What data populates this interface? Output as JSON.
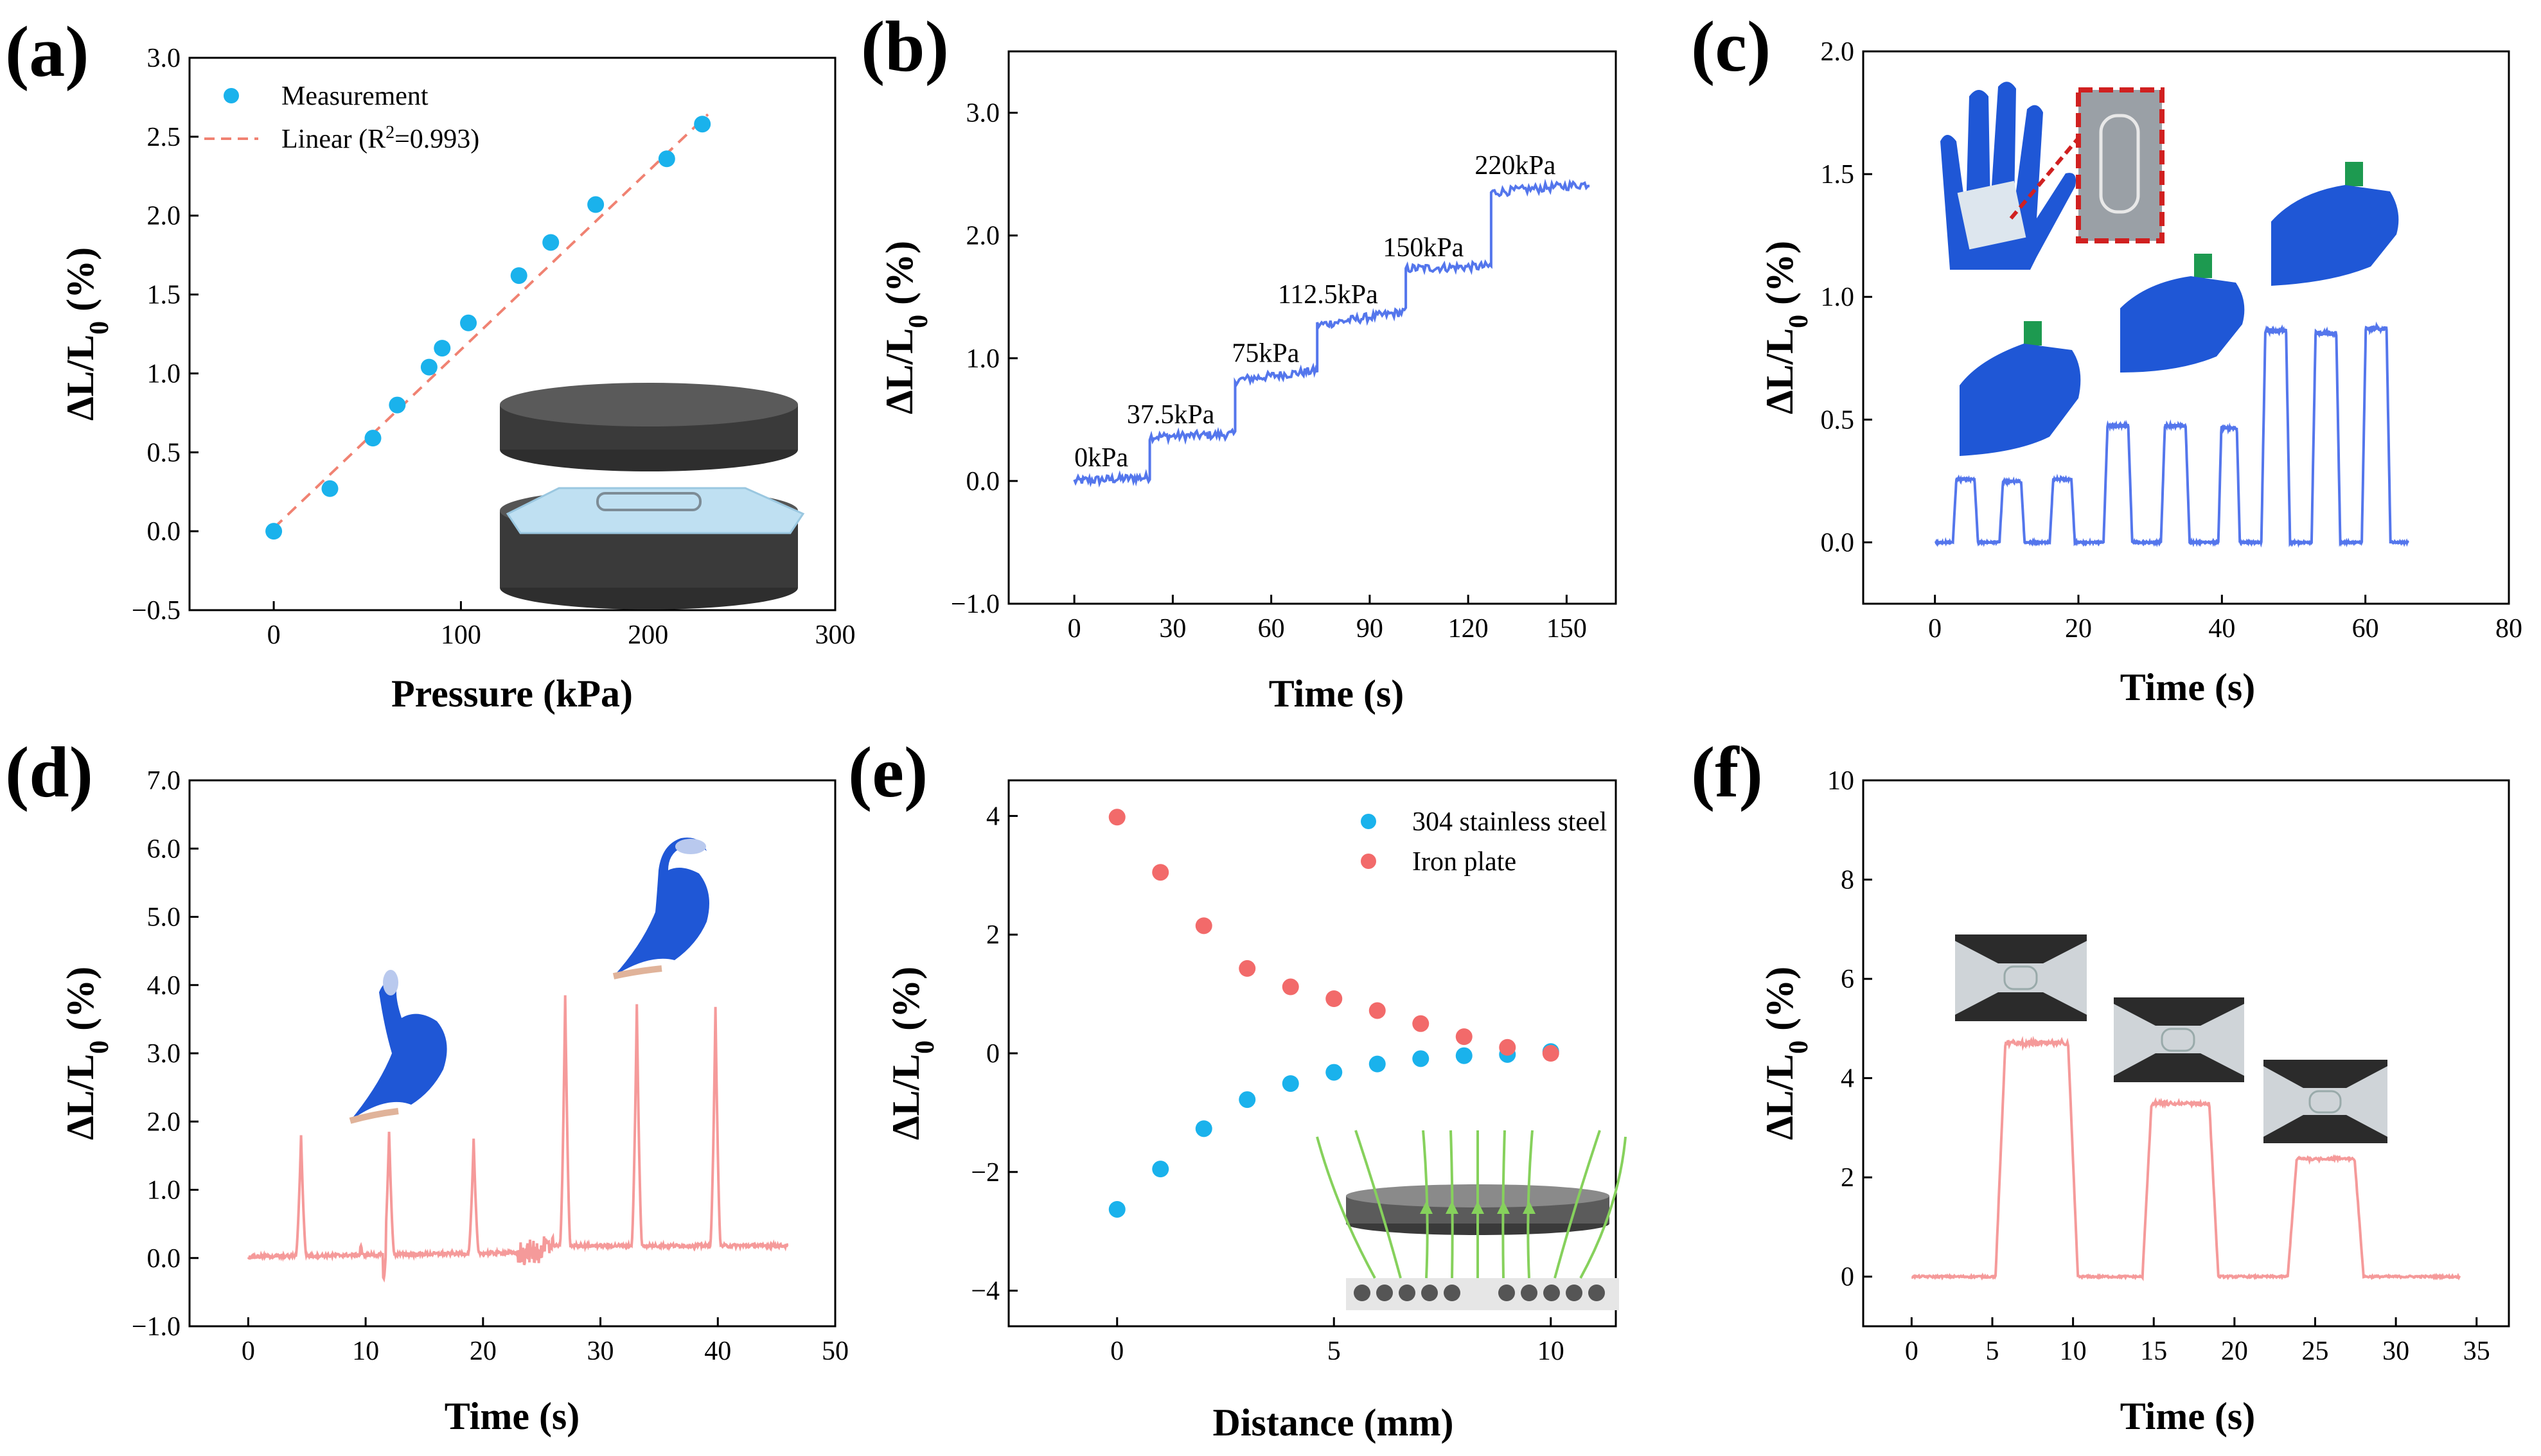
{
  "colors": {
    "blue_pts": "#1ab2ec",
    "red_line": "#f08272",
    "trace_blue": "#5476ec",
    "trace_red": "#f59a9a",
    "red_pts": "#f26a6a",
    "glove": "#1f57d6",
    "field": "#86d15c"
  },
  "chart_data": [
    {
      "id": "a",
      "panel_label": "(a)",
      "type": "scatter",
      "xlabel": "Pressure (kPa)",
      "ylabel": "ΔL/L0 (%)",
      "xlim": [
        -45,
        300
      ],
      "ylim": [
        -0.5,
        3.0
      ],
      "xticks": [
        0,
        100,
        200,
        300
      ],
      "yticks": [
        -0.5,
        0.0,
        0.5,
        1.0,
        1.5,
        2.0,
        2.5,
        3.0
      ],
      "xticklabels": [
        "0",
        "100",
        "200",
        "300"
      ],
      "yticklabels": [
        "−0.5",
        "0.0",
        "0.5",
        "1.0",
        "1.5",
        "2.0",
        "2.5",
        "3.0"
      ],
      "legend": [
        "Measurement",
        "Linear (R2=0.993)"
      ],
      "series": [
        {
          "name": "Measurement",
          "x": [
            0,
            30,
            53,
            66,
            83,
            90,
            104,
            131,
            148,
            172,
            210,
            229
          ],
          "y": [
            0,
            0.27,
            0.59,
            0.8,
            1.04,
            1.16,
            1.32,
            1.62,
            1.83,
            2.07,
            2.36,
            2.58
          ]
        },
        {
          "name": "Linear",
          "slope": 0.0113,
          "intercept": 0.02,
          "x": [
            0,
            232
          ]
        }
      ]
    },
    {
      "id": "b",
      "panel_label": "(b)",
      "type": "line",
      "xlabel": "Time (s)",
      "ylabel": "ΔL/L0 (%)",
      "xlim": [
        -20,
        165
      ],
      "ylim": [
        -1.0,
        3.5
      ],
      "xticks": [
        0,
        30,
        60,
        90,
        120,
        150
      ],
      "yticks": [
        -1.0,
        0.0,
        1.0,
        2.0,
        3.0
      ],
      "xticklabels": [
        "0",
        "30",
        "60",
        "90",
        "120",
        "150"
      ],
      "yticklabels": [
        "−1.0",
        "0.0",
        "1.0",
        "2.0",
        "3.0"
      ],
      "steps": [
        {
          "t0": 0,
          "t1": 23,
          "v0": 0.0,
          "v1": 0.03
        },
        {
          "t0": 23,
          "t1": 49,
          "v0": 0.36,
          "v1": 0.38
        },
        {
          "t0": 49,
          "t1": 74,
          "v0": 0.82,
          "v1": 0.9
        },
        {
          "t0": 74,
          "t1": 101,
          "v0": 1.27,
          "v1": 1.38
        },
        {
          "t0": 101,
          "t1": 127,
          "v0": 1.73,
          "v1": 1.75
        },
        {
          "t0": 127,
          "t1": 157,
          "v0": 2.35,
          "v1": 2.42
        }
      ],
      "annotations": [
        {
          "text": "0kPa",
          "x": 0,
          "y": 0.12
        },
        {
          "text": "37.5kPa",
          "x": 16,
          "y": 0.47
        },
        {
          "text": "75kPa",
          "x": 48,
          "y": 0.97
        },
        {
          "text": "112.5kPa",
          "x": 62,
          "y": 1.45
        },
        {
          "text": "150kPa",
          "x": 94,
          "y": 1.83
        },
        {
          "text": "220kPa",
          "x": 122,
          "y": 2.5
        }
      ]
    },
    {
      "id": "c",
      "panel_label": "(c)",
      "type": "line",
      "xlabel": "Time (s)",
      "ylabel": "ΔL/L0 (%)",
      "xlim": [
        -10,
        80
      ],
      "ylim": [
        -0.25,
        2.0
      ],
      "xticks": [
        0,
        20,
        40,
        60,
        80
      ],
      "yticks": [
        0.0,
        0.5,
        1.0,
        1.5,
        2.0
      ],
      "xticklabels": [
        "0",
        "20",
        "40",
        "60",
        "80"
      ],
      "yticklabels": [
        "0.0",
        "0.5",
        "1.0",
        "1.5",
        "2.0"
      ],
      "pulses": [
        {
          "start": 2.5,
          "end": 6.0,
          "amp": 0.26
        },
        {
          "start": 9.0,
          "end": 12.5,
          "amp": 0.25
        },
        {
          "start": 16.0,
          "end": 19.5,
          "amp": 0.26
        },
        {
          "start": 23.5,
          "end": 27.5,
          "amp": 0.48
        },
        {
          "start": 31.5,
          "end": 35.5,
          "amp": 0.48
        },
        {
          "start": 39.5,
          "end": 42.5,
          "amp": 0.47
        },
        {
          "start": 45.5,
          "end": 49.5,
          "amp": 0.87
        },
        {
          "start": 52.5,
          "end": 56.5,
          "amp": 0.86
        },
        {
          "start": 59.5,
          "end": 63.5,
          "amp": 0.88
        }
      ],
      "t_end": 66
    },
    {
      "id": "d",
      "panel_label": "(d)",
      "type": "line",
      "xlabel": "Time (s)",
      "ylabel": "ΔL/L0 (%)",
      "xlim": [
        -5,
        50
      ],
      "ylim": [
        -1.0,
        7.0
      ],
      "xticks": [
        0,
        10,
        20,
        30,
        40,
        50
      ],
      "yticks": [
        -1.0,
        0.0,
        1.0,
        2.0,
        3.0,
        4.0,
        5.0,
        6.0,
        7.0
      ],
      "xticklabels": [
        "0",
        "10",
        "20",
        "30",
        "40",
        "50"
      ],
      "yticklabels": [
        "−1.0",
        "0.0",
        "1.0",
        "2.0",
        "3.0",
        "4.0",
        "5.0",
        "6.0",
        "7.0"
      ],
      "baselines": [
        {
          "t0": 0,
          "t1": 25,
          "v": 0.02
        },
        {
          "t0": 25.5,
          "t1": 46,
          "v": 0.18
        }
      ],
      "spikes": [
        {
          "t": 4.5,
          "amp": 1.8
        },
        {
          "t": 12.0,
          "amp": 1.85
        },
        {
          "t": 19.2,
          "amp": 1.75
        },
        {
          "t": 27.0,
          "amp": 3.85
        },
        {
          "t": 33.1,
          "amp": 3.72
        },
        {
          "t": 39.8,
          "amp": 3.68
        }
      ]
    },
    {
      "id": "e",
      "panel_label": "(e)",
      "type": "scatter",
      "xlabel": "Distance (mm)",
      "ylabel": "ΔL/L0 (%)",
      "xlim": [
        -2.5,
        11.5
      ],
      "ylim": [
        -4.6,
        4.6
      ],
      "xticks": [
        0,
        5,
        10
      ],
      "yticks": [
        -4,
        -2,
        0,
        2,
        4
      ],
      "xticklabels": [
        "0",
        "5",
        "10"
      ],
      "yticklabels": [
        "−4",
        "−2",
        "0",
        "2",
        "4"
      ],
      "legend": [
        "304 stainless steel",
        "Iron plate"
      ],
      "series": [
        {
          "name": "304 stainless steel",
          "x": [
            0,
            1,
            2,
            3,
            4,
            5,
            6,
            7,
            8,
            9,
            10
          ],
          "y": [
            -2.63,
            -1.95,
            -1.27,
            -0.78,
            -0.51,
            -0.32,
            -0.18,
            -0.09,
            -0.04,
            -0.02,
            0.03
          ]
        },
        {
          "name": "Iron plate",
          "x": [
            0,
            1,
            2,
            3,
            4,
            5,
            6,
            7,
            8,
            9,
            10
          ],
          "y": [
            3.98,
            3.05,
            2.15,
            1.43,
            1.12,
            0.92,
            0.72,
            0.5,
            0.28,
            0.1,
            0.0
          ]
        }
      ]
    },
    {
      "id": "f",
      "panel_label": "(f)",
      "type": "line",
      "xlabel": "Time (s)",
      "ylabel": "ΔL/L0 (%)",
      "xlim": [
        -3,
        37
      ],
      "ylim": [
        -1,
        10
      ],
      "xticks": [
        0,
        5,
        10,
        15,
        20,
        25,
        30,
        35
      ],
      "yticks": [
        0,
        2,
        4,
        6,
        8,
        10
      ],
      "xticklabels": [
        "0",
        "5",
        "10",
        "15",
        "20",
        "25",
        "30",
        "35"
      ],
      "yticklabels": [
        "0",
        "2",
        "4",
        "6",
        "8",
        "10"
      ],
      "pulses": [
        {
          "start": 5.2,
          "end": 10.3,
          "amp": 4.75
        },
        {
          "start": 14.3,
          "end": 19.0,
          "amp": 3.52
        },
        {
          "start": 23.3,
          "end": 28.0,
          "amp": 2.4
        }
      ],
      "t_end": 34
    }
  ]
}
